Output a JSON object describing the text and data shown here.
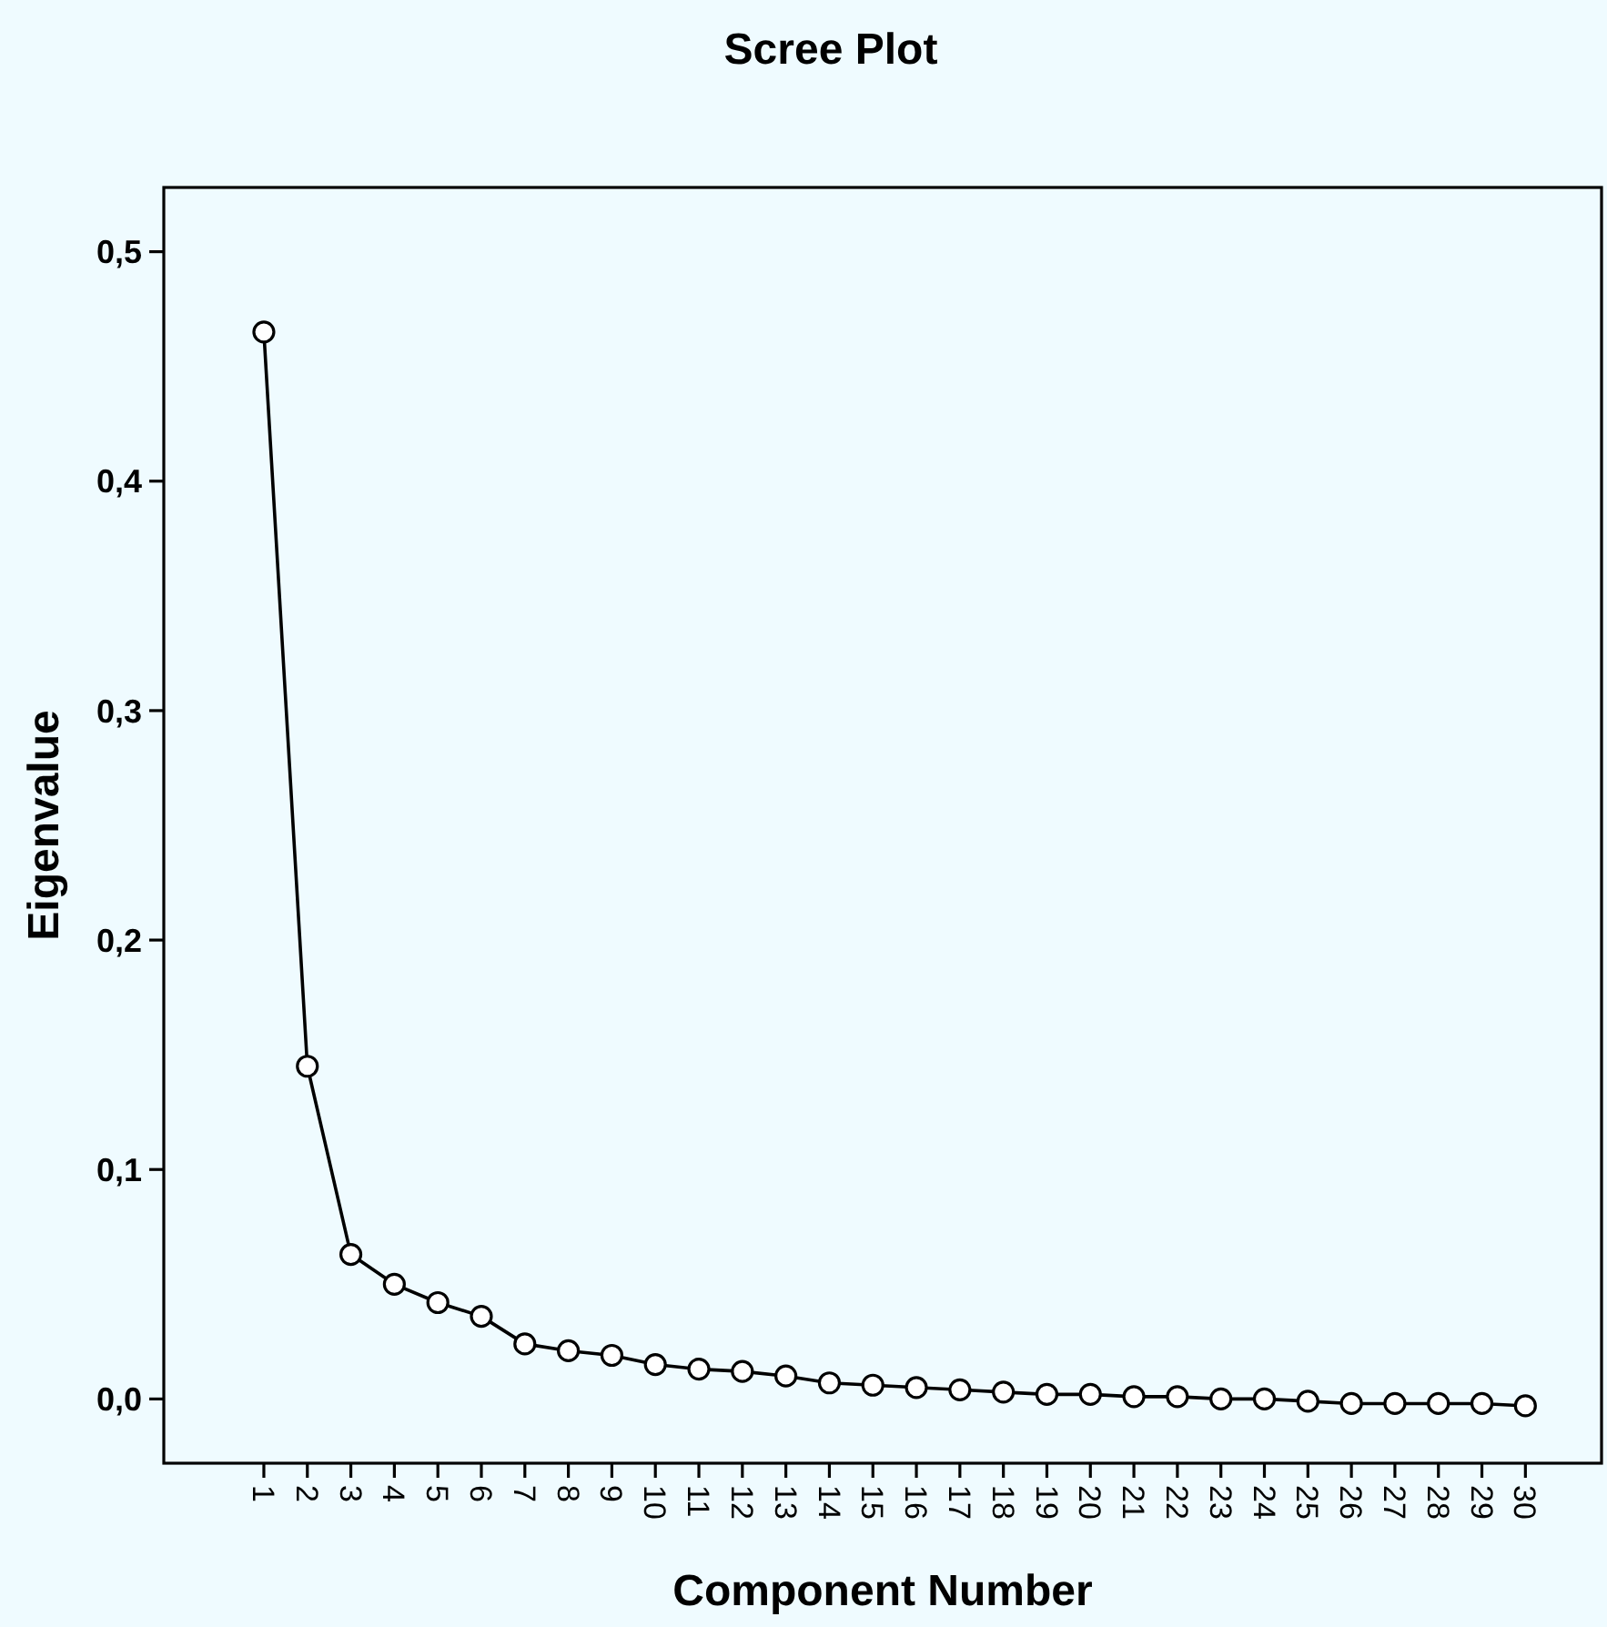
{
  "chart_data": {
    "type": "line",
    "title": "Scree Plot",
    "xlabel": "Component Number",
    "ylabel": "Eigenvalue",
    "categories": [
      "1",
      "2",
      "3",
      "4",
      "5",
      "6",
      "7",
      "8",
      "9",
      "10",
      "11",
      "12",
      "13",
      "14",
      "15",
      "16",
      "17",
      "18",
      "19",
      "20",
      "21",
      "22",
      "23",
      "24",
      "25",
      "26",
      "27",
      "28",
      "29",
      "30"
    ],
    "series": [
      {
        "color": "#000000",
        "values": [
          0.465,
          0.145,
          0.063,
          0.05,
          0.042,
          0.036,
          0.024,
          0.021,
          0.019,
          0.015,
          0.013,
          0.012,
          0.01,
          0.007,
          0.006,
          0.005,
          0.004,
          0.003,
          0.002,
          0.002,
          0.001,
          0.001,
          0.0,
          0.0,
          -0.001,
          -0.002,
          -0.002,
          -0.002,
          -0.002,
          -0.003
        ]
      }
    ],
    "ylim": [
      -0.028,
      0.528
    ],
    "yticks": [
      {
        "value": 0,
        "label": "0,0"
      },
      {
        "value": 0.1,
        "label": "0,1"
      },
      {
        "value": 0.2,
        "label": "0,2"
      },
      {
        "value": 0.3,
        "label": "0,3"
      },
      {
        "value": 0.4,
        "label": "0,4"
      },
      {
        "value": 0.5,
        "label": "0,5"
      }
    ],
    "grid": false,
    "marker": "circle",
    "line_style": "solid"
  }
}
